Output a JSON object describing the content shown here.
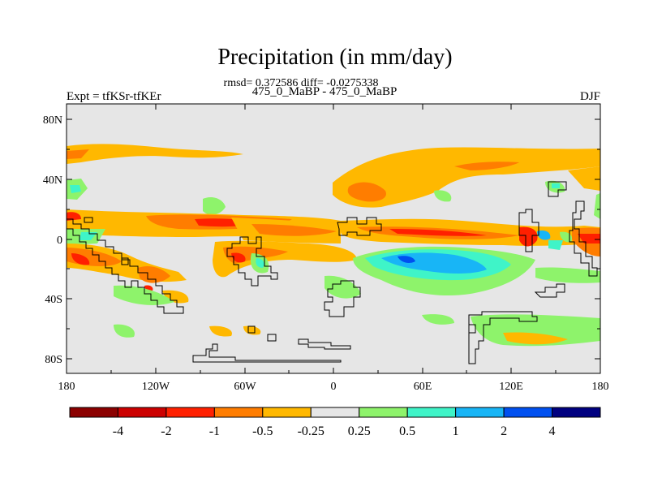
{
  "title": "Precipitation (in mm/day)",
  "stats": "rmsd= 0.372586 diff= -0.0275338",
  "expt_label": "Expt = tfKSr-tfKEr",
  "subtitle": "475_0_MaBP - 475_0_MaBP",
  "season": "DJF",
  "lat_ticks": [
    "80N",
    "40N",
    "0",
    "40S",
    "80S"
  ],
  "lon_ticks": [
    "180",
    "120W",
    "60W",
    "0",
    "60E",
    "120E",
    "180"
  ],
  "colorbar": {
    "colors": [
      "#8b0000",
      "#cc0000",
      "#ff2000",
      "#ff7d00",
      "#ffb800",
      "#e6e6e6",
      "#8ef36b",
      "#3ff4c8",
      "#18b5f6",
      "#0050f0",
      "#000080"
    ],
    "labels": [
      "-4",
      "-2",
      "-1",
      "-0.5",
      "-0.25",
      "0.25",
      "0.5",
      "1",
      "2",
      "4"
    ]
  },
  "colors": {
    "background": "#e6e6e6",
    "coastline": "#000000"
  }
}
